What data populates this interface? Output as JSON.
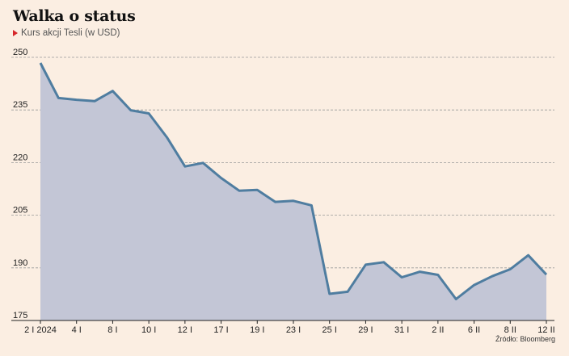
{
  "header": {
    "title": "Walka o status",
    "subtitle": "Kurs akcji Tesli (w USD)"
  },
  "source": "Źródło: Bloomberg",
  "colors": {
    "background": "#fbeee2",
    "line": "#4f7da0",
    "area": "#c3c6d6",
    "marker": "#d6262a"
  },
  "chart_data": {
    "type": "area",
    "title": "Walka o status",
    "subtitle": "Kurs akcji Tesli (w USD)",
    "xlabel": "",
    "ylabel": "",
    "ylim": [
      175,
      250
    ],
    "yticks": [
      175,
      190,
      205,
      220,
      235,
      250
    ],
    "grid": "horizontal-dashed",
    "x_tick_labels": [
      {
        "i": 0,
        "label": "2 I 2024"
      },
      {
        "i": 2,
        "label": "4 I"
      },
      {
        "i": 4,
        "label": "8 I"
      },
      {
        "i": 6,
        "label": "10 I"
      },
      {
        "i": 8,
        "label": "12 I"
      },
      {
        "i": 10,
        "label": "17 I"
      },
      {
        "i": 12,
        "label": "19 I"
      },
      {
        "i": 14,
        "label": "23 I"
      },
      {
        "i": 16,
        "label": "25 I"
      },
      {
        "i": 18,
        "label": "29 I"
      },
      {
        "i": 20,
        "label": "31 I"
      },
      {
        "i": 22,
        "label": "2 II"
      },
      {
        "i": 24,
        "label": "6 II"
      },
      {
        "i": 26,
        "label": "8 II"
      },
      {
        "i": 28,
        "label": "12 II"
      }
    ],
    "series": [
      {
        "values": [
          248.4,
          238.4,
          237.9,
          237.5,
          240.4,
          234.9,
          234.0,
          227.2,
          218.9,
          219.9,
          215.6,
          212.0,
          212.2,
          208.8,
          209.1,
          207.8,
          182.6,
          183.2,
          190.9,
          191.6,
          187.3,
          188.9,
          188.0,
          181.1,
          185.1,
          187.6,
          189.6,
          193.6,
          188.1
        ]
      }
    ]
  }
}
